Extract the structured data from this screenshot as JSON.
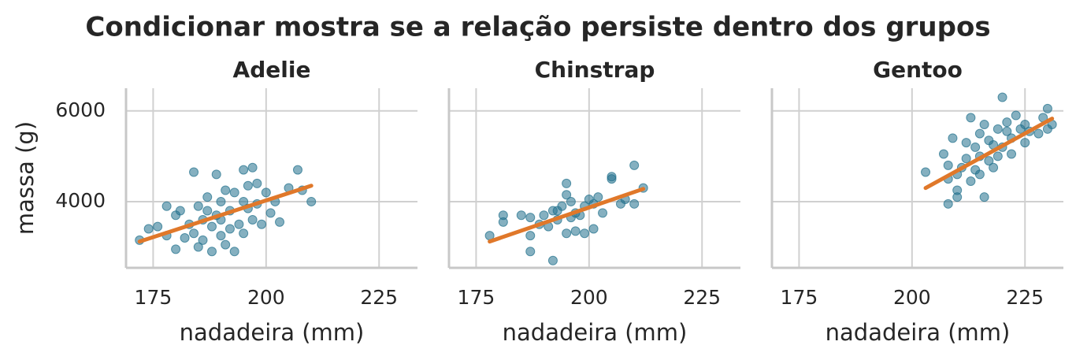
{
  "title": "Condicionar mostra se a relação persiste dentro dos grupos",
  "chart_data": [
    {
      "type": "scatter",
      "title": "Adelie",
      "xlabel": "nadadeira (mm)",
      "ylabel": "massa (g)",
      "xlim": [
        169,
        233.5
      ],
      "ylim": [
        2540,
        6500
      ],
      "xticks": [
        175,
        200,
        225
      ],
      "yticks": [
        4000,
        6000
      ],
      "grid": true,
      "series": [
        {
          "type": "scatter",
          "color": "#21708c",
          "x": [
            172,
            174,
            176,
            178,
            178,
            180,
            180,
            181,
            182,
            183,
            184,
            184,
            185,
            185,
            186,
            186,
            187,
            187,
            188,
            188,
            189,
            189,
            190,
            190,
            190,
            191,
            191,
            192,
            192,
            193,
            193,
            194,
            195,
            195,
            195,
            196,
            196,
            197,
            197,
            198,
            198,
            199,
            200,
            201,
            202,
            203,
            205,
            207,
            208,
            210
          ],
          "values": [
            3150,
            3400,
            3450,
            3900,
            3250,
            3700,
            2950,
            3800,
            3200,
            3500,
            4650,
            3300,
            3900,
            3000,
            3600,
            3150,
            3800,
            4100,
            3450,
            2900,
            4600,
            3700,
            3250,
            4000,
            3600,
            4250,
            3050,
            3400,
            3800,
            4200,
            2900,
            3500,
            4700,
            3300,
            4000,
            4350,
            3850,
            3600,
            4750,
            4400,
            3950,
            3500,
            4200,
            3750,
            4000,
            3550,
            4300,
            4700,
            4250,
            4000
          ]
        },
        {
          "type": "line",
          "color": "#e0782a",
          "x": [
            172,
            210
          ],
          "values": [
            3120,
            4350
          ]
        }
      ]
    },
    {
      "type": "scatter",
      "title": "Chinstrap",
      "xlabel": "nadadeira (mm)",
      "xlim": [
        169,
        233.5
      ],
      "ylim": [
        2540,
        6500
      ],
      "xticks": [
        175,
        200,
        225
      ],
      "yticks": [
        4000,
        6000
      ],
      "grid": true,
      "series": [
        {
          "type": "scatter",
          "color": "#21708c",
          "x": [
            178,
            181,
            181,
            185,
            187,
            187,
            187,
            189,
            190,
            191,
            192,
            192,
            193,
            193,
            194,
            195,
            195,
            195,
            196,
            196,
            197,
            197,
            198,
            199,
            199,
            200,
            201,
            201,
            202,
            203,
            205,
            205,
            207,
            208,
            210,
            210,
            212
          ],
          "values": [
            3250,
            3700,
            3550,
            3700,
            3250,
            2900,
            3650,
            3500,
            3700,
            3450,
            2700,
            3800,
            3600,
            3800,
            3900,
            4150,
            4400,
            3300,
            3650,
            4000,
            3350,
            3750,
            3700,
            3900,
            3300,
            4050,
            3400,
            3950,
            4100,
            3750,
            4500,
            4550,
            3950,
            4050,
            3950,
            4800,
            4300
          ]
        },
        {
          "type": "line",
          "color": "#e0782a",
          "x": [
            178,
            212
          ],
          "values": [
            3120,
            4280
          ]
        }
      ]
    },
    {
      "type": "scatter",
      "title": "Gentoo",
      "xlabel": "nadadeira (mm)",
      "xlim": [
        169,
        233.5
      ],
      "ylim": [
        2540,
        6500
      ],
      "xticks": [
        175,
        200,
        225
      ],
      "yticks": [
        4000,
        6000
      ],
      "grid": true,
      "series": [
        {
          "type": "scatter",
          "color": "#21708c",
          "x": [
            203,
            207,
            208,
            208,
            208,
            209,
            210,
            210,
            210,
            211,
            212,
            212,
            213,
            213,
            214,
            214,
            215,
            215,
            215,
            216,
            216,
            217,
            217,
            218,
            218,
            219,
            219,
            220,
            220,
            221,
            221,
            222,
            222,
            223,
            224,
            225,
            225,
            226,
            228,
            229,
            230,
            230,
            231
          ],
          "values": [
            4650,
            5050,
            4800,
            3950,
            4500,
            5400,
            4100,
            4600,
            4250,
            4750,
            4950,
            5300,
            4450,
            5850,
            4700,
            5200,
            4600,
            5500,
            5000,
            4100,
            5700,
            4900,
            5350,
            5250,
            4750,
            5600,
            5000,
            6300,
            5200,
            5750,
            5550,
            5050,
            5400,
            5900,
            5600,
            5300,
            5700,
            5550,
            5500,
            5850,
            6050,
            5600,
            5700
          ]
        },
        {
          "type": "line",
          "color": "#e0782a",
          "x": [
            203,
            231
          ],
          "values": [
            4300,
            5830
          ]
        }
      ]
    }
  ]
}
